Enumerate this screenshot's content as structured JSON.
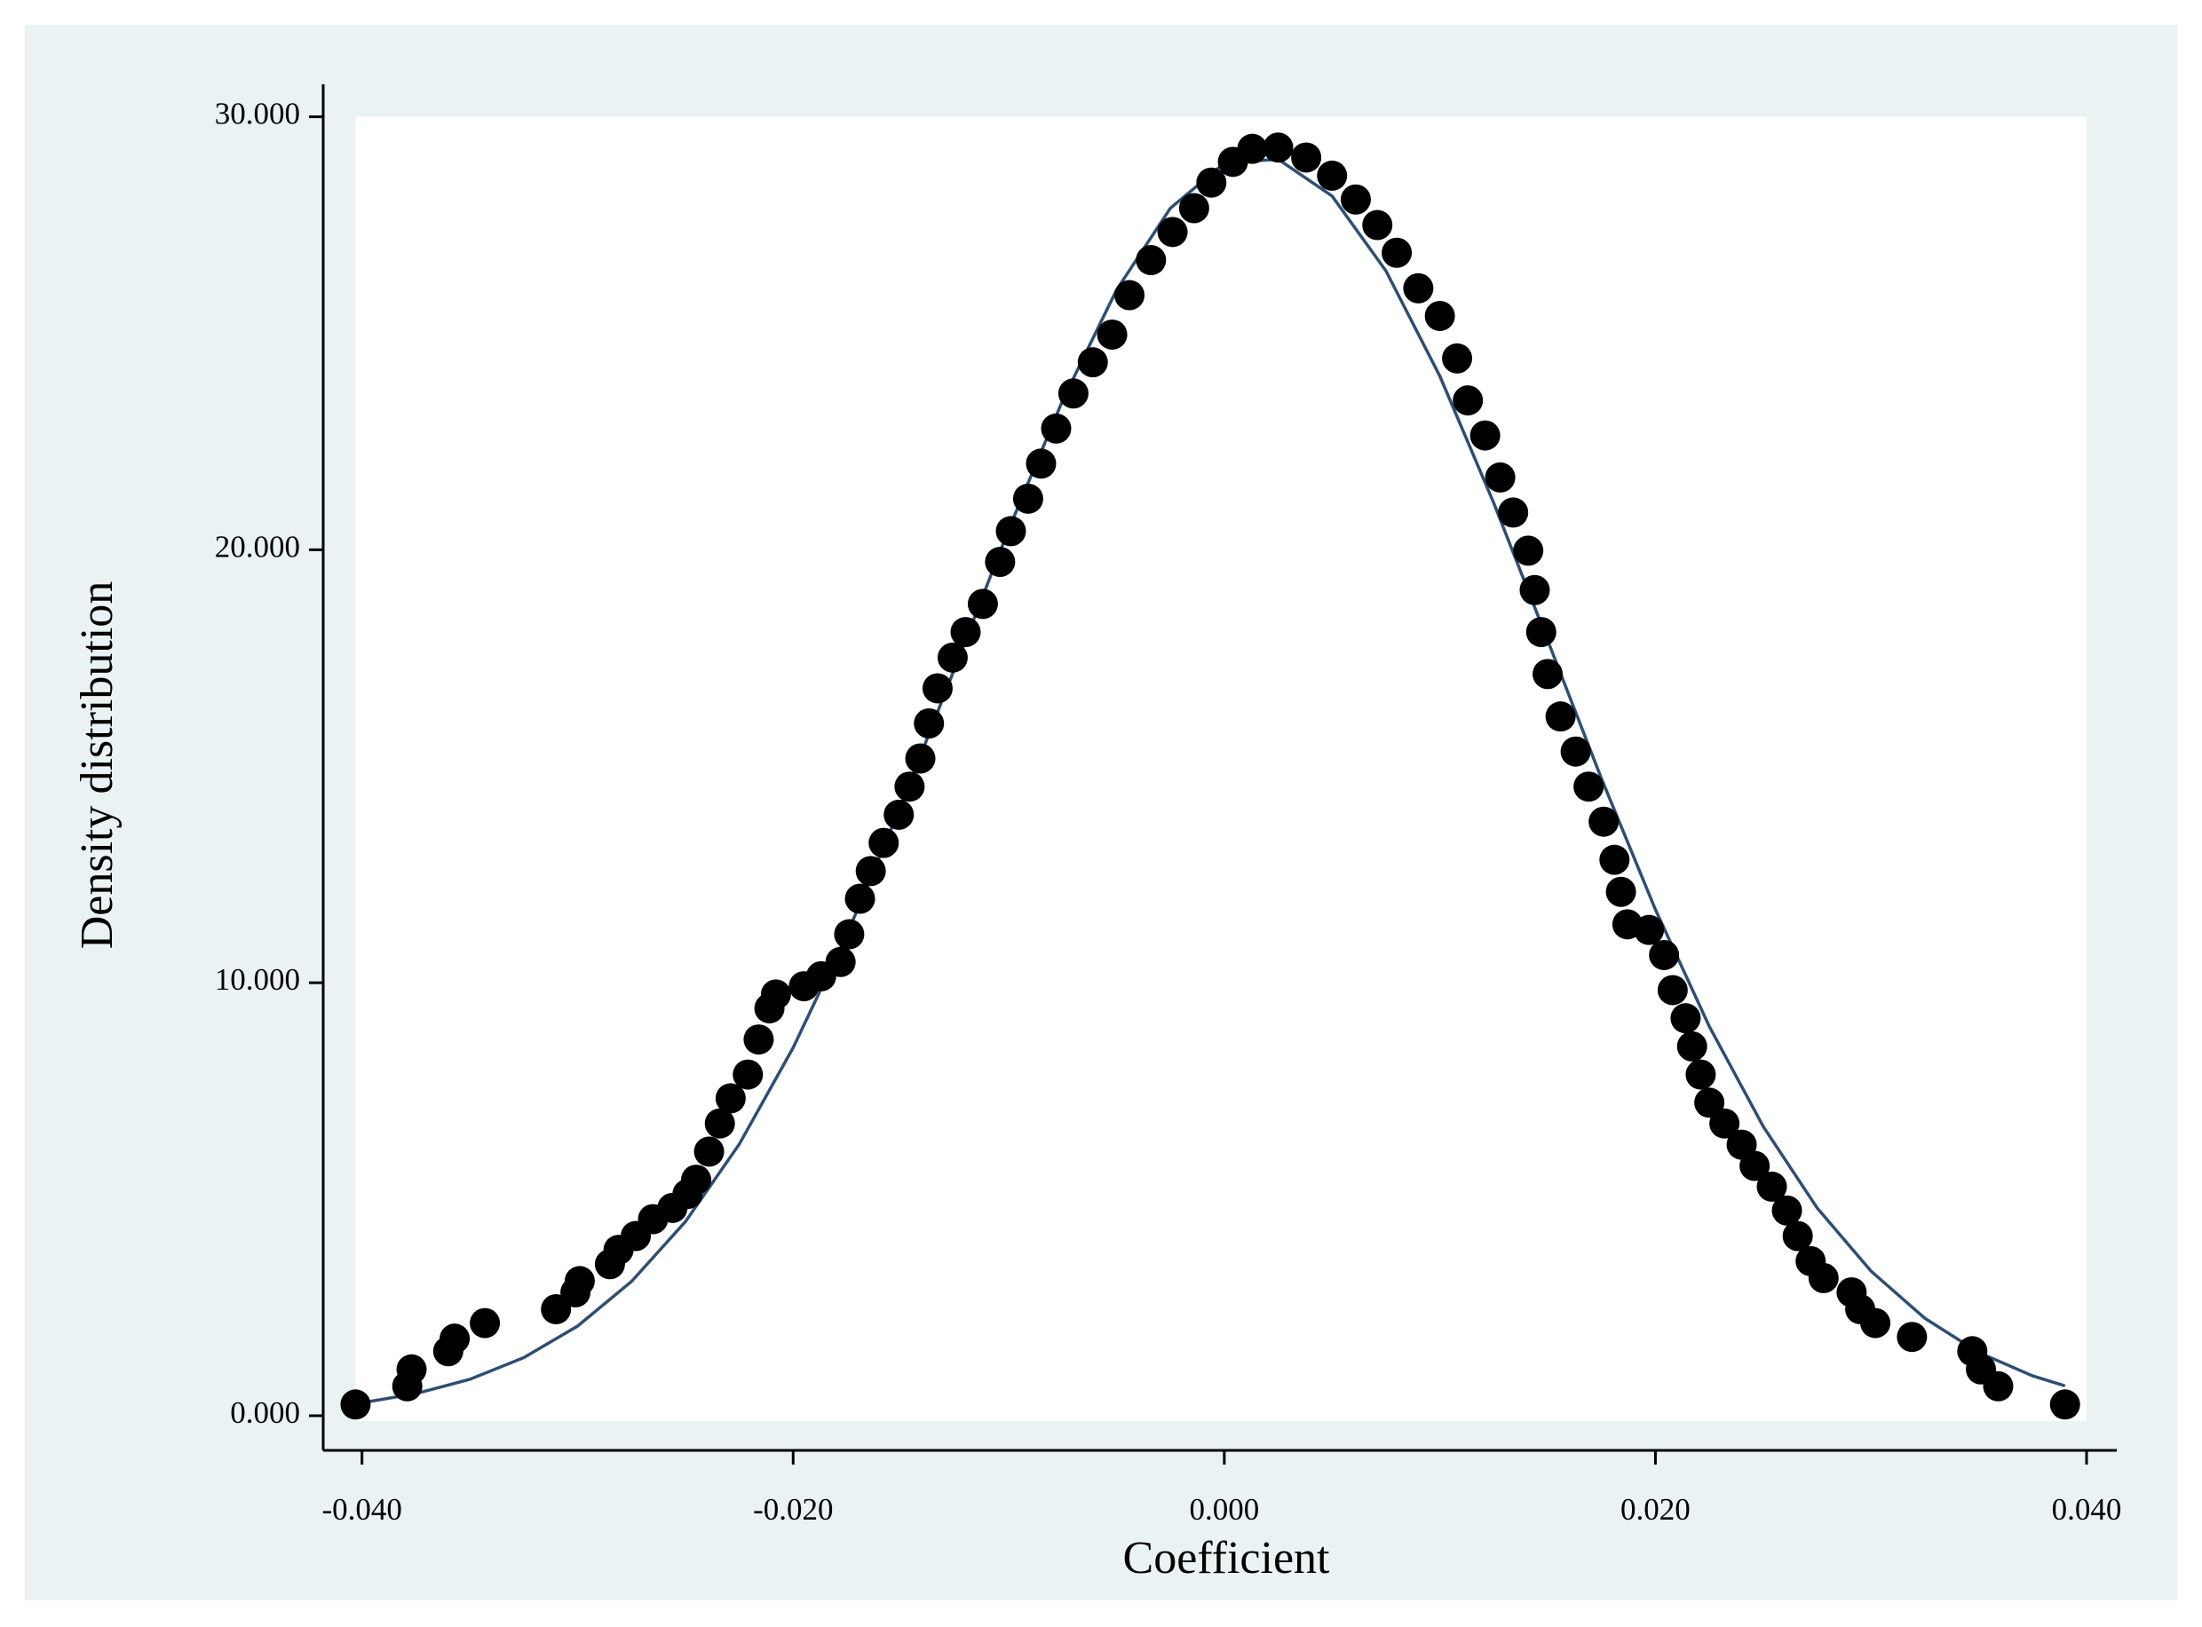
{
  "chart_data": {
    "type": "scatter",
    "xlabel": "Coefficient",
    "ylabel": "Density distribution",
    "xlim": [
      -0.0418,
      0.0414
    ],
    "ylim": [
      -0.8,
      30.75
    ],
    "xticks": [
      {
        "value": -0.04,
        "label": "-0.040"
      },
      {
        "value": -0.02,
        "label": "-0.020"
      },
      {
        "value": 0,
        "label": "0.000"
      },
      {
        "value": 0.02,
        "label": "0.020"
      },
      {
        "value": 0.04,
        "label": "0.040"
      }
    ],
    "yticks": [
      {
        "value": 0,
        "label": "0.000"
      },
      {
        "value": 10,
        "label": "10.000"
      },
      {
        "value": 20,
        "label": "20.000"
      },
      {
        "value": 30,
        "label": "30.000"
      }
    ],
    "series": [
      {
        "type": "scatter",
        "color": "#000000",
        "x": [
          -0.0403,
          -0.0379,
          -0.0377,
          -0.036,
          -0.0357,
          -0.0343,
          -0.031,
          -0.0301,
          -0.0299,
          -0.0285,
          -0.0281,
          -0.0273,
          -0.0265,
          -0.0256,
          -0.0249,
          -0.0245,
          -0.0239,
          -0.0234,
          -0.0229,
          -0.0221,
          -0.0216,
          -0.0211,
          -0.0208,
          -0.0195,
          -0.0187,
          -0.0178,
          -0.0174,
          -0.0169,
          -0.0164,
          -0.0158,
          -0.0151,
          -0.0146,
          -0.0141,
          -0.0137,
          -0.0133,
          -0.0126,
          -0.012,
          -0.0112,
          -0.0104,
          -0.0099,
          -0.0091,
          -0.0085,
          -0.0078,
          -0.007,
          -0.0061,
          -0.0052,
          -0.0044,
          -0.0034,
          -0.0024,
          -0.0014,
          -0.0006,
          0.0004,
          0.0013,
          0.0025,
          0.0038,
          0.005,
          0.0061,
          0.0071,
          0.008,
          0.009,
          0.01,
          0.0108,
          0.0113,
          0.0121,
          0.0128,
          0.0134,
          0.0141,
          0.0144,
          0.0147,
          0.015,
          0.0156,
          0.0163,
          0.0169,
          0.0176,
          0.0181,
          0.0184,
          0.0187,
          0.0197,
          0.0204,
          0.0208,
          0.0214,
          0.0217,
          0.0221,
          0.0225,
          0.0232,
          0.024,
          0.0246,
          0.0254,
          0.0261,
          0.0266,
          0.0272,
          0.0278,
          0.0291,
          0.0295,
          0.0302,
          0.0319,
          0.0347,
          0.0351,
          0.0359,
          0.039
        ],
        "values": [
          0.26,
          0.68,
          1.07,
          1.49,
          1.78,
          2.14,
          2.46,
          2.85,
          3.11,
          3.5,
          3.83,
          4.15,
          4.54,
          4.8,
          5.12,
          5.45,
          6.1,
          6.75,
          7.33,
          7.88,
          8.69,
          9.41,
          9.73,
          9.92,
          10.15,
          10.48,
          11.12,
          11.94,
          12.58,
          13.23,
          13.88,
          14.53,
          15.18,
          15.99,
          16.8,
          17.51,
          18.1,
          18.75,
          19.72,
          20.43,
          21.18,
          21.99,
          22.8,
          23.61,
          24.33,
          24.97,
          25.88,
          26.69,
          27.34,
          27.89,
          28.48,
          28.96,
          29.26,
          29.29,
          29.06,
          28.64,
          28.09,
          27.5,
          26.86,
          26.04,
          25.4,
          24.42,
          23.45,
          22.64,
          21.67,
          20.86,
          19.98,
          19.07,
          18.1,
          17.13,
          16.15,
          15.34,
          14.53,
          13.72,
          12.84,
          12.1,
          11.35,
          11.22,
          10.64,
          9.83,
          9.18,
          8.53,
          7.88,
          7.23,
          6.75,
          6.26,
          5.77,
          5.29,
          4.74,
          4.15,
          3.57,
          3.18,
          2.85,
          2.46,
          2.14,
          1.82,
          1.49,
          1.07,
          0.68,
          0.26
        ]
      },
      {
        "type": "line",
        "color": "#2e4e73",
        "x": [
          -0.04,
          -0.0375,
          -0.035,
          -0.0325,
          -0.03,
          -0.0275,
          -0.025,
          -0.0225,
          -0.02,
          -0.0175,
          -0.015,
          -0.0125,
          -0.01,
          -0.0075,
          -0.005,
          -0.0025,
          0,
          0.0025,
          0.005,
          0.0075,
          0.01,
          0.0125,
          0.015,
          0.0175,
          0.02,
          0.0225,
          0.025,
          0.0275,
          0.03,
          0.0325,
          0.035,
          0.0375,
          0.039
        ],
        "values": [
          0.3,
          0.51,
          0.84,
          1.34,
          2.07,
          3.1,
          4.48,
          6.27,
          8.5,
          11.12,
          14.09,
          17.27,
          20.47,
          23.45,
          26.0,
          27.89,
          28.93,
          29.02,
          28.17,
          26.44,
          24.01,
          21.08,
          17.91,
          14.71,
          11.69,
          8.99,
          6.68,
          4.8,
          3.34,
          2.25,
          1.46,
          0.92,
          0.69
        ]
      }
    ]
  }
}
